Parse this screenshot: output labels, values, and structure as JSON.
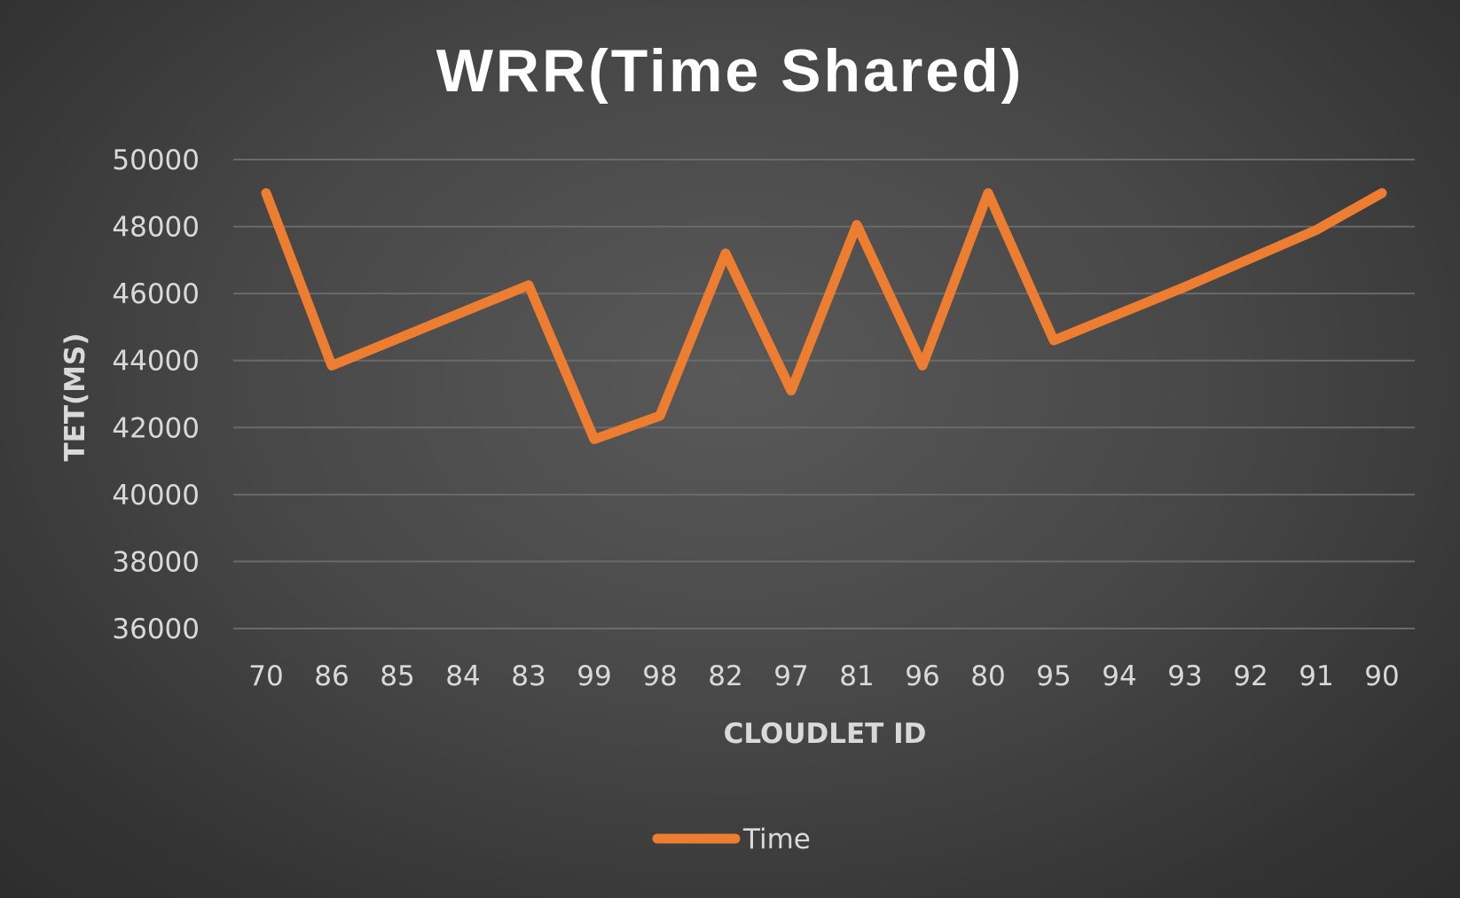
{
  "chart_data": {
    "type": "line",
    "title": "WRR(Time Shared)",
    "xlabel": "CLOUDLET ID",
    "ylabel": "TET(MS)",
    "categories": [
      "70",
      "86",
      "85",
      "84",
      "83",
      "99",
      "98",
      "82",
      "97",
      "81",
      "96",
      "80",
      "95",
      "94",
      "93",
      "92",
      "91",
      "90"
    ],
    "series": [
      {
        "name": "Time",
        "color": "#ed7d31",
        "values": [
          49000,
          43850,
          44650,
          45450,
          46250,
          41650,
          42350,
          47200,
          43100,
          48050,
          43850,
          49000,
          44600,
          45400,
          46200,
          47050,
          47900,
          49000
        ]
      }
    ],
    "ylim": [
      36000,
      50000
    ],
    "yticks": [
      36000,
      38000,
      40000,
      42000,
      44000,
      46000,
      48000,
      50000
    ],
    "grid": true,
    "legend": "bottom"
  }
}
